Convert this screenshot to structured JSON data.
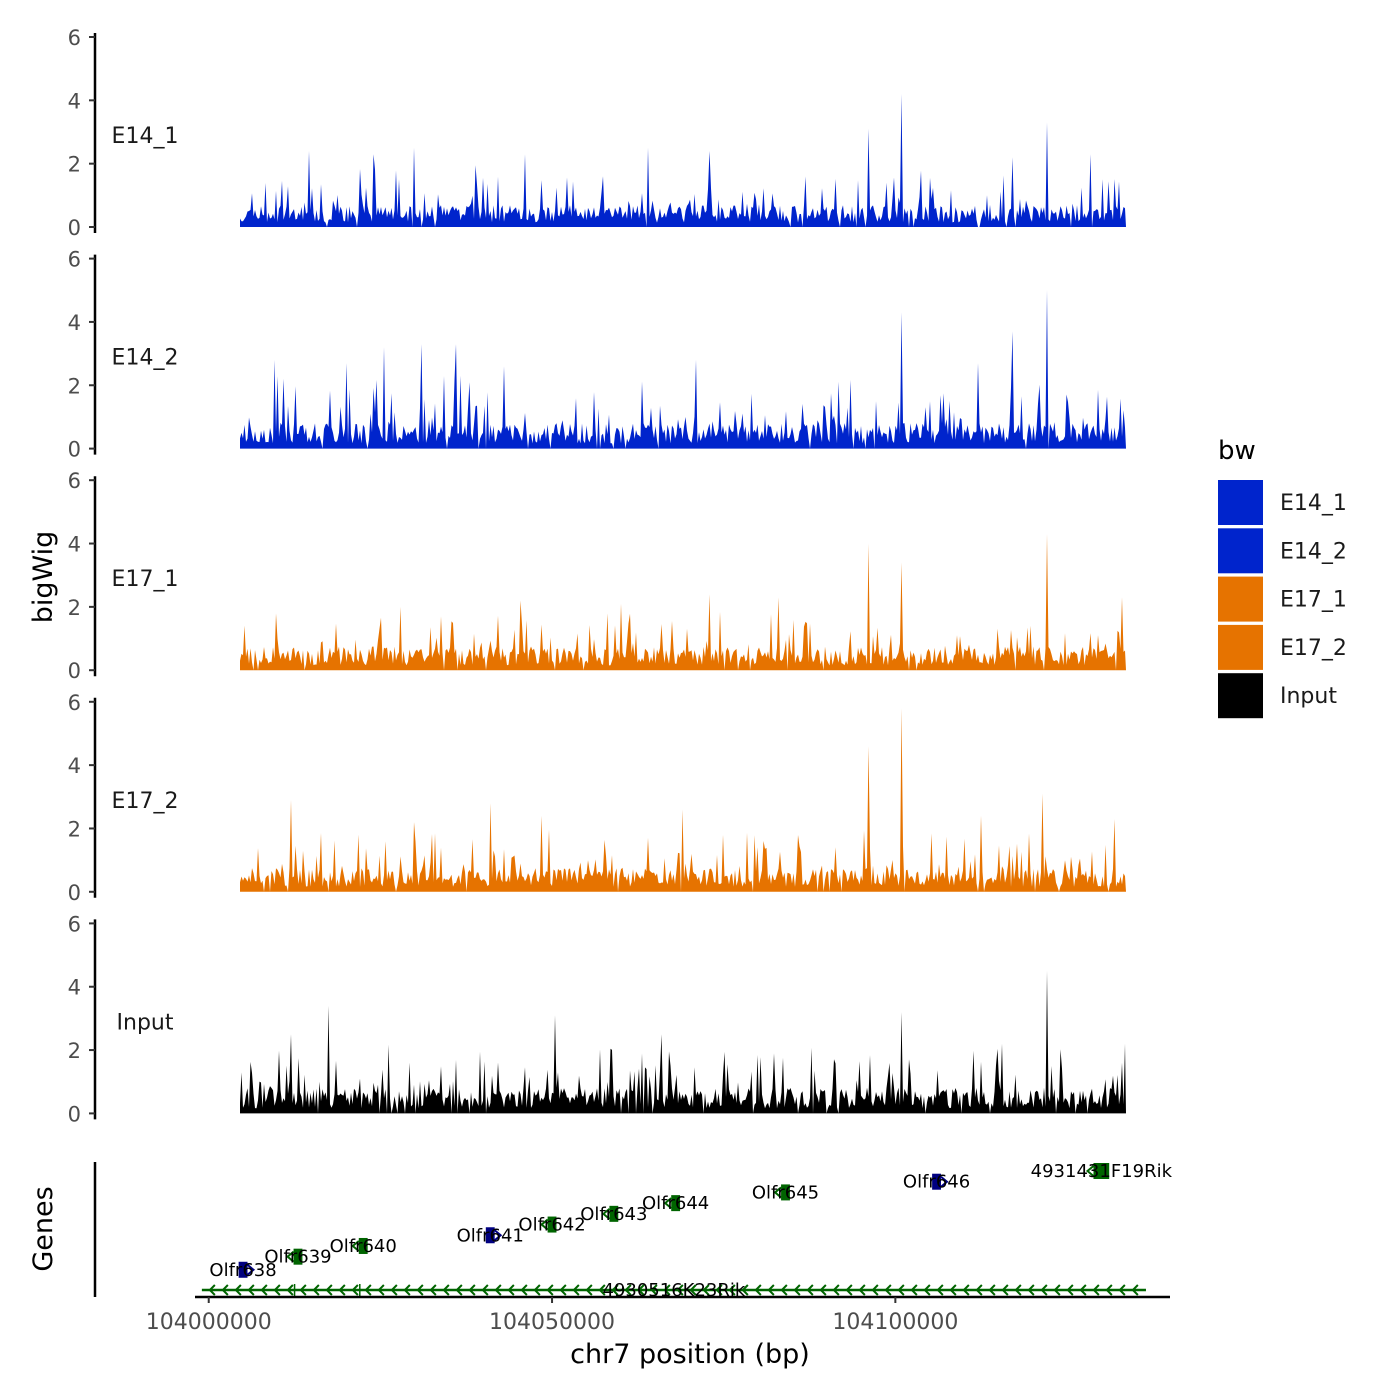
{
  "chart_data": {
    "type": "area",
    "title": "",
    "xlabel": "chr7 position (bp)",
    "ylabel": "bigWig",
    "genes_label": "Genes",
    "x_range": [
      103998000,
      104140000
    ],
    "x_ticks": [
      104000000,
      104050000,
      104100000
    ],
    "x_tick_labels": [
      "104000000",
      "104050000",
      "104100000"
    ],
    "ylim": [
      0,
      6
    ],
    "y_ticks": [
      0,
      2,
      4,
      6
    ],
    "y_tick_labels": [
      "0",
      "2",
      "4",
      "6"
    ],
    "legend": {
      "title": "bw",
      "position": "right",
      "entries": [
        {
          "label": "E14_1",
          "color": "#0024CC"
        },
        {
          "label": "E14_2",
          "color": "#0024CC"
        },
        {
          "label": "E17_1",
          "color": "#E67300"
        },
        {
          "label": "E17_2",
          "color": "#E67300"
        },
        {
          "label": "Input",
          "color": "#000000"
        }
      ]
    },
    "tracks": [
      {
        "name": "E14_1",
        "label": "E14_1",
        "color": "#0024CC",
        "seed": 11,
        "base": 0.55,
        "spread": 1.1,
        "peaks": [
          [
            104001500,
            1.8
          ],
          [
            104014500,
            2.4
          ],
          [
            104024000,
            2.3
          ],
          [
            104030000,
            2.5
          ],
          [
            104046000,
            2.3
          ],
          [
            104064000,
            2.5
          ],
          [
            104073000,
            2.4
          ],
          [
            104096000,
            3.1
          ],
          [
            104101000,
            4.2
          ],
          [
            104117000,
            2.2
          ],
          [
            104122000,
            3.3
          ],
          [
            104128500,
            2.3
          ],
          [
            104137500,
            1.4
          ]
        ]
      },
      {
        "name": "E14_2",
        "label": "E14_2",
        "color": "#0024CC",
        "seed": 23,
        "base": 0.65,
        "spread": 1.3,
        "peaks": [
          [
            104009500,
            2.8
          ],
          [
            104020000,
            2.7
          ],
          [
            104025500,
            3.2
          ],
          [
            104031000,
            3.3
          ],
          [
            104036000,
            3.3
          ],
          [
            104043000,
            2.6
          ],
          [
            104071000,
            2.8
          ],
          [
            104101000,
            4.3
          ],
          [
            104112000,
            2.7
          ],
          [
            104117000,
            3.7
          ],
          [
            104122000,
            5.0
          ]
        ]
      },
      {
        "name": "E17_1",
        "label": "E17_1",
        "color": "#E67300",
        "seed": 37,
        "base": 0.6,
        "spread": 1.0,
        "peaks": [
          [
            104002500,
            2.0
          ],
          [
            104028000,
            2.0
          ],
          [
            104045500,
            2.2
          ],
          [
            104060000,
            2.1
          ],
          [
            104073000,
            2.4
          ],
          [
            104083000,
            2.3
          ],
          [
            104096000,
            4.0
          ],
          [
            104101000,
            3.4
          ],
          [
            104122000,
            4.3
          ],
          [
            104133000,
            2.3
          ]
        ]
      },
      {
        "name": "E17_2",
        "label": "E17_2",
        "color": "#E67300",
        "seed": 51,
        "base": 0.6,
        "spread": 1.1,
        "peaks": [
          [
            104012000,
            2.9
          ],
          [
            104030000,
            2.2
          ],
          [
            104041000,
            2.8
          ],
          [
            104048500,
            2.4
          ],
          [
            104069000,
            2.6
          ],
          [
            104096000,
            4.6
          ],
          [
            104101000,
            5.8
          ],
          [
            104112500,
            2.4
          ],
          [
            104121500,
            3.1
          ],
          [
            104132000,
            2.3
          ],
          [
            104138500,
            1.5
          ]
        ]
      },
      {
        "name": "Input",
        "label": "Input",
        "color": "#000000",
        "seed": 67,
        "base": 0.65,
        "spread": 1.2,
        "peaks": [
          [
            104004000,
            2.4
          ],
          [
            104012000,
            2.5
          ],
          [
            104017500,
            3.4
          ],
          [
            104050500,
            3.1
          ],
          [
            104066000,
            2.5
          ],
          [
            104101000,
            3.2
          ],
          [
            104115500,
            2.2
          ],
          [
            104122000,
            4.5
          ],
          [
            104133000,
            1.6
          ]
        ]
      }
    ],
    "genes": [
      {
        "name": "Olfr638",
        "start": 104004500,
        "end": 104005500,
        "strand": "+",
        "color": "#000080",
        "y": 0.17
      },
      {
        "name": "Olfr639",
        "start": 104012500,
        "end": 104013500,
        "strand": "-",
        "color": "#006400",
        "y": 0.28
      },
      {
        "name": "Olfr640",
        "start": 104022000,
        "end": 104023000,
        "strand": "-",
        "color": "#006400",
        "y": 0.37
      },
      {
        "name": "Olfr641",
        "start": 104040500,
        "end": 104041500,
        "strand": "+",
        "color": "#000080",
        "y": 0.46
      },
      {
        "name": "Olfr642",
        "start": 104049500,
        "end": 104050500,
        "strand": "-",
        "color": "#006400",
        "y": 0.55
      },
      {
        "name": "Olfr643",
        "start": 104058500,
        "end": 104059500,
        "strand": "-",
        "color": "#006400",
        "y": 0.64
      },
      {
        "name": "Olfr644",
        "start": 104067500,
        "end": 104068500,
        "strand": "-",
        "color": "#006400",
        "y": 0.73
      },
      {
        "name": "Olfr645",
        "start": 104083500,
        "end": 104084500,
        "strand": "-",
        "color": "#006400",
        "y": 0.82
      },
      {
        "name": "Olfr646",
        "start": 104105500,
        "end": 104106500,
        "strand": "+",
        "color": "#000080",
        "y": 0.91
      },
      {
        "name": "4931431F19Rik",
        "start": 104129000,
        "end": 104131000,
        "strand": "-",
        "color": "#006400",
        "y": 1.0
      },
      {
        "name": "4930516K23Rik",
        "start": 103999000,
        "end": 104136500,
        "strand": "-",
        "color": "#006400",
        "y": 0.0,
        "long": true
      }
    ]
  }
}
